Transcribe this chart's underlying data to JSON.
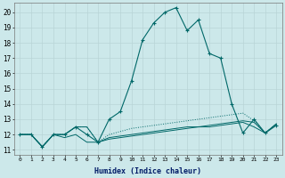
{
  "xlabel": "Humidex (Indice chaleur)",
  "background_color": "#cce8ea",
  "grid_color_major": "#b8d4d6",
  "grid_color_minor": "#cde5e7",
  "line_color": "#006868",
  "xlim": [
    -0.5,
    23.5
  ],
  "ylim": [
    10.7,
    20.6
  ],
  "yticks": [
    11,
    12,
    13,
    14,
    15,
    16,
    17,
    18,
    19,
    20
  ],
  "xticks": [
    0,
    1,
    2,
    3,
    4,
    5,
    6,
    7,
    8,
    9,
    10,
    11,
    12,
    13,
    14,
    15,
    16,
    17,
    18,
    19,
    20,
    21,
    22,
    23
  ],
  "main_curve": {
    "x": [
      0,
      1,
      2,
      3,
      4,
      5,
      6,
      7,
      8,
      9,
      10,
      11,
      12,
      13,
      14,
      15,
      16,
      17,
      18,
      19,
      20,
      21,
      22,
      23
    ],
    "y": [
      12,
      12,
      11.2,
      12,
      12,
      12.5,
      12,
      11.5,
      13.0,
      13.5,
      15.5,
      18.2,
      19.3,
      20.0,
      20.3,
      18.8,
      19.5,
      17.3,
      17.0,
      14.0,
      12.1,
      13.0,
      12.1,
      12.6
    ]
  },
  "dotted_curve": {
    "x": [
      0,
      1,
      2,
      3,
      4,
      5,
      6,
      7,
      8,
      9,
      10,
      11,
      12,
      13,
      14,
      15,
      16,
      17,
      18,
      19,
      20,
      21,
      22,
      23
    ],
    "y": [
      12,
      12,
      11.2,
      12,
      12,
      12.5,
      12.5,
      11.5,
      12.0,
      12.2,
      12.4,
      12.5,
      12.6,
      12.7,
      12.8,
      12.9,
      13.0,
      13.1,
      13.2,
      13.3,
      13.4,
      12.9,
      12.1,
      12.7
    ]
  },
  "flat_line1": {
    "x": [
      0,
      1,
      2,
      3,
      4,
      5,
      6,
      7,
      8,
      9,
      10,
      11,
      12,
      13,
      14,
      15,
      16,
      17,
      18,
      19,
      20,
      21,
      22,
      23
    ],
    "y": [
      12,
      12,
      11.2,
      12,
      12,
      12.5,
      12.5,
      11.5,
      11.8,
      11.9,
      12.0,
      12.1,
      12.2,
      12.3,
      12.4,
      12.5,
      12.5,
      12.6,
      12.7,
      12.8,
      12.9,
      12.8,
      12.1,
      12.7
    ]
  },
  "flat_line2": {
    "x": [
      0,
      1,
      2,
      3,
      4,
      5,
      6,
      7,
      8,
      9,
      10,
      11,
      12,
      13,
      14,
      15,
      16,
      17,
      18,
      19,
      20,
      21,
      22,
      23
    ],
    "y": [
      12,
      12,
      11.2,
      12,
      11.8,
      12.0,
      11.5,
      11.5,
      11.7,
      11.8,
      11.9,
      12.0,
      12.1,
      12.2,
      12.3,
      12.4,
      12.5,
      12.5,
      12.6,
      12.7,
      12.8,
      12.5,
      12.1,
      12.7
    ]
  }
}
